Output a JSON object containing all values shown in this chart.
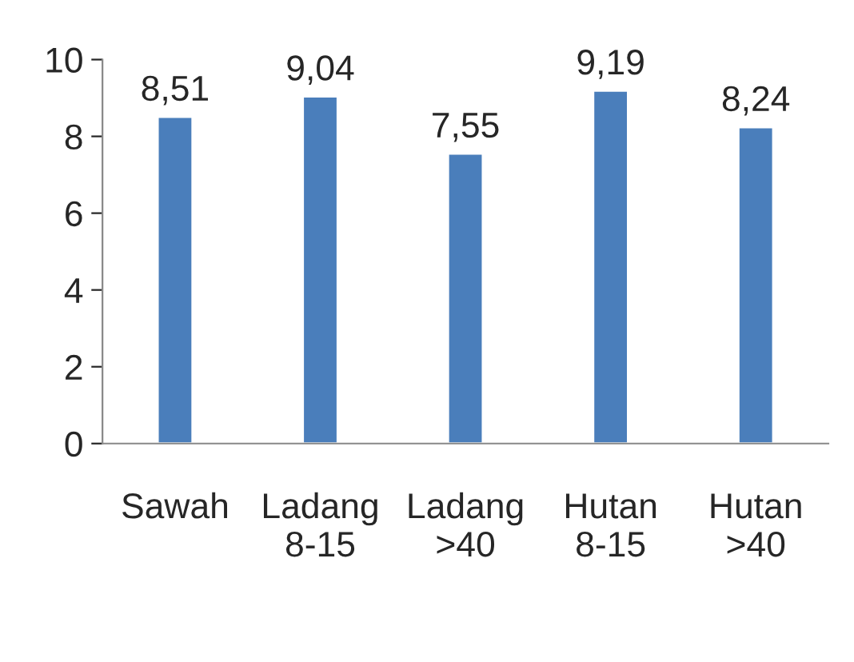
{
  "chart_data": {
    "type": "bar",
    "categories": [
      "Sawah",
      "Ladang\n8-15",
      "Ladang\n>40",
      "Hutan\n8-15",
      "Hutan\n>40"
    ],
    "values": [
      8.51,
      9.04,
      7.55,
      9.19,
      8.24
    ],
    "value_labels": [
      "8,51",
      "9,04",
      "7,55",
      "9,19",
      "8,24"
    ],
    "color": "#4a7ebb",
    "ylim": [
      0,
      10
    ],
    "yticks": [
      0,
      2,
      4,
      6,
      8,
      10
    ],
    "grid": false,
    "legend": false
  }
}
